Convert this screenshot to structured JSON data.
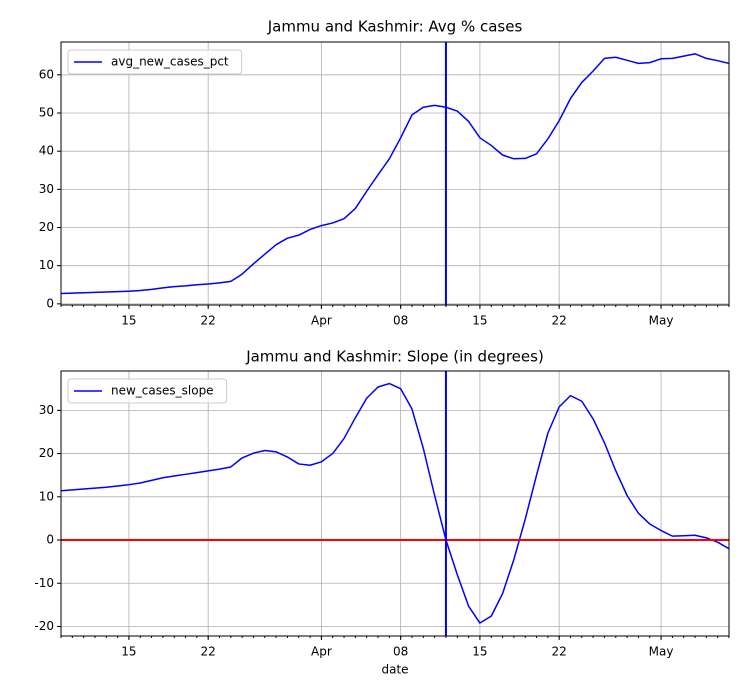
{
  "chart_data": [
    {
      "type": "line",
      "title": "Jammu and Kashmir: Avg % cases",
      "x": [
        "03-09",
        "03-10",
        "03-11",
        "03-12",
        "03-13",
        "03-14",
        "03-15",
        "03-16",
        "03-17",
        "03-18",
        "03-19",
        "03-20",
        "03-21",
        "03-22",
        "03-23",
        "03-24",
        "03-25",
        "03-26",
        "03-27",
        "03-28",
        "03-29",
        "03-30",
        "03-31",
        "04-01",
        "04-02",
        "04-03",
        "04-04",
        "04-05",
        "04-06",
        "04-07",
        "04-08",
        "04-09",
        "04-10",
        "04-11",
        "04-12",
        "04-13",
        "04-14",
        "04-15",
        "04-16",
        "04-17",
        "04-18",
        "04-19",
        "04-20",
        "04-21",
        "04-22",
        "04-23",
        "04-24",
        "04-25",
        "04-26",
        "04-27",
        "04-28",
        "04-29",
        "04-30",
        "05-01",
        "05-02",
        "05-03",
        "05-04",
        "05-05",
        "05-06",
        "05-07"
      ],
      "series": [
        {
          "name": "avg_new_cases_pct",
          "color": "#0000ff",
          "values": [
            2.7,
            2.8,
            2.9,
            3.0,
            3.1,
            3.2,
            3.3,
            3.5,
            3.8,
            4.2,
            4.5,
            4.7,
            5.0,
            5.2,
            5.5,
            5.9,
            7.8,
            10.5,
            13,
            15.5,
            17.2,
            18,
            19.5,
            20.5,
            21.2,
            22.3,
            25,
            29.5,
            33.8,
            38,
            43.5,
            49.5,
            51.5,
            52,
            51.5,
            50.5,
            47.8,
            43.5,
            41.5,
            39,
            38,
            38.1,
            39.3,
            43.2,
            48,
            53.8,
            58,
            61,
            64.3,
            64.6,
            63.8,
            63,
            63.2,
            64.2,
            64.3,
            64.9,
            65.5,
            64.3,
            63.7,
            63
          ]
        }
      ],
      "xlim": [
        "03-09",
        "05-07"
      ],
      "xticks": [
        {
          "value": "03-15",
          "label": "15"
        },
        {
          "value": "03-22",
          "label": "22"
        },
        {
          "value": "04-01",
          "label": "Apr"
        },
        {
          "value": "04-08",
          "label": "08"
        },
        {
          "value": "04-15",
          "label": "15"
        },
        {
          "value": "04-22",
          "label": "22"
        },
        {
          "value": "05-01",
          "label": "May"
        }
      ],
      "ylim": [
        -0.3,
        68.6
      ],
      "yticks": [
        0,
        10,
        20,
        30,
        40,
        50,
        60
      ],
      "grid": true,
      "legend": "upper left",
      "vline": {
        "x": "04-12",
        "color": "#0000ff"
      }
    },
    {
      "type": "line",
      "title": "Jammu and Kashmir: Slope (in degrees)",
      "xlabel": "date",
      "x": [
        "03-09",
        "03-10",
        "03-11",
        "03-12",
        "03-13",
        "03-14",
        "03-15",
        "03-16",
        "03-17",
        "03-18",
        "03-19",
        "03-20",
        "03-21",
        "03-22",
        "03-23",
        "03-24",
        "03-25",
        "03-26",
        "03-27",
        "03-28",
        "03-29",
        "03-30",
        "03-31",
        "04-01",
        "04-02",
        "04-03",
        "04-04",
        "04-05",
        "04-06",
        "04-07",
        "04-08",
        "04-09",
        "04-10",
        "04-11",
        "04-12",
        "04-13",
        "04-14",
        "04-15",
        "04-16",
        "04-17",
        "04-18",
        "04-19",
        "04-20",
        "04-21",
        "04-22",
        "04-23",
        "04-24",
        "04-25",
        "04-26",
        "04-27",
        "04-28",
        "04-29",
        "04-30",
        "05-01",
        "05-02",
        "05-03",
        "05-04",
        "05-05",
        "05-06",
        "05-07"
      ],
      "series": [
        {
          "name": "new_cases_slope",
          "color": "#0000ff",
          "values": [
            11.4,
            11.6,
            11.8,
            12.0,
            12.2,
            12.5,
            12.8,
            13.2,
            13.8,
            14.4,
            14.8,
            15.2,
            15.6,
            16.0,
            16.4,
            16.9,
            19,
            20.1,
            20.7,
            20.4,
            19.2,
            17.6,
            17.3,
            18.1,
            20,
            23.5,
            28.3,
            32.8,
            35.4,
            36.2,
            35,
            30.3,
            21.2,
            10.3,
            0,
            -8,
            -15.3,
            -19.2,
            -17.6,
            -12.4,
            -4.5,
            4.8,
            15,
            24.7,
            30.8,
            33.4,
            32.1,
            28,
            22.5,
            16,
            10.3,
            6.2,
            3.7,
            2.2,
            0.9,
            1.0,
            1.1,
            0.5,
            -0.5,
            -2
          ]
        }
      ],
      "xlim": [
        "03-09",
        "05-07"
      ],
      "xticks": [
        {
          "value": "03-15",
          "label": "15"
        },
        {
          "value": "03-22",
          "label": "22"
        },
        {
          "value": "04-01",
          "label": "Apr"
        },
        {
          "value": "04-08",
          "label": "08"
        },
        {
          "value": "04-15",
          "label": "15"
        },
        {
          "value": "04-22",
          "label": "22"
        },
        {
          "value": "05-01",
          "label": "May"
        }
      ],
      "ylim": [
        -22.2,
        39.1
      ],
      "yticks": [
        -20,
        -10,
        0,
        10,
        20,
        30
      ],
      "grid": true,
      "legend": "upper left",
      "vline": {
        "x": "04-12",
        "color": "#0000ff"
      },
      "hline": {
        "y": 0,
        "color": "#ff0000"
      }
    }
  ]
}
